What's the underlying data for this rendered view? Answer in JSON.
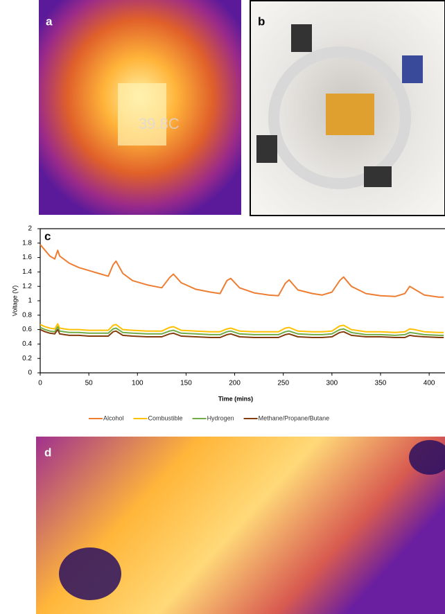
{
  "panel_labels": [
    "a",
    "b",
    "c",
    "d"
  ],
  "thermal_reading": "39.8C",
  "chart_data": {
    "type": "line",
    "xlabel": "Time (mins)",
    "ylabel": "Voltage (V)",
    "xlim": [
      0,
      417
    ],
    "xticks": [
      0,
      50,
      100,
      150,
      200,
      250,
      300,
      350,
      400
    ],
    "ylim": [
      0,
      2
    ],
    "yticks": [
      0,
      0.2,
      0.4,
      0.6,
      0.8,
      1,
      1.2,
      1.4,
      1.6,
      1.8,
      2
    ],
    "legend": "bottom",
    "x": [
      0,
      5,
      10,
      15,
      18,
      20,
      25,
      30,
      40,
      50,
      60,
      70,
      75,
      78,
      85,
      95,
      110,
      125,
      133,
      137,
      145,
      160,
      175,
      185,
      192,
      196,
      205,
      220,
      235,
      245,
      252,
      256,
      265,
      280,
      290,
      300,
      308,
      312,
      320,
      335,
      350,
      365,
      375,
      380,
      385,
      395,
      410,
      415
    ],
    "series": [
      {
        "name": "Alcohol",
        "color": "#ed7d31",
        "values": [
          1.78,
          1.7,
          1.62,
          1.58,
          1.7,
          1.62,
          1.57,
          1.52,
          1.46,
          1.42,
          1.38,
          1.34,
          1.5,
          1.55,
          1.38,
          1.28,
          1.22,
          1.18,
          1.32,
          1.37,
          1.25,
          1.16,
          1.12,
          1.1,
          1.28,
          1.31,
          1.18,
          1.11,
          1.08,
          1.07,
          1.24,
          1.29,
          1.15,
          1.1,
          1.08,
          1.12,
          1.28,
          1.33,
          1.2,
          1.1,
          1.07,
          1.06,
          1.1,
          1.2,
          1.16,
          1.08,
          1.05,
          1.05
        ]
      },
      {
        "name": "Combustible",
        "color": "#ffc000",
        "values": [
          0.67,
          0.64,
          0.62,
          0.61,
          0.68,
          0.62,
          0.61,
          0.6,
          0.6,
          0.59,
          0.59,
          0.59,
          0.66,
          0.67,
          0.6,
          0.59,
          0.58,
          0.58,
          0.63,
          0.64,
          0.59,
          0.58,
          0.57,
          0.57,
          0.61,
          0.62,
          0.58,
          0.57,
          0.57,
          0.57,
          0.62,
          0.63,
          0.58,
          0.57,
          0.57,
          0.58,
          0.65,
          0.66,
          0.6,
          0.57,
          0.57,
          0.56,
          0.57,
          0.61,
          0.6,
          0.57,
          0.56,
          0.56
        ]
      },
      {
        "name": "Hydrogen",
        "color": "#70ad47",
        "values": [
          0.63,
          0.6,
          0.58,
          0.57,
          0.64,
          0.58,
          0.57,
          0.56,
          0.56,
          0.55,
          0.55,
          0.55,
          0.61,
          0.62,
          0.56,
          0.55,
          0.54,
          0.54,
          0.58,
          0.59,
          0.55,
          0.54,
          0.53,
          0.53,
          0.57,
          0.58,
          0.54,
          0.53,
          0.53,
          0.53,
          0.57,
          0.58,
          0.54,
          0.53,
          0.53,
          0.54,
          0.6,
          0.61,
          0.56,
          0.53,
          0.53,
          0.52,
          0.53,
          0.56,
          0.55,
          0.53,
          0.52,
          0.52
        ]
      },
      {
        "name": "Methane/Propane/Butane",
        "color": "#843c0c",
        "values": [
          0.6,
          0.57,
          0.55,
          0.54,
          0.6,
          0.54,
          0.53,
          0.52,
          0.52,
          0.51,
          0.51,
          0.51,
          0.57,
          0.58,
          0.52,
          0.51,
          0.5,
          0.5,
          0.54,
          0.55,
          0.51,
          0.5,
          0.49,
          0.49,
          0.53,
          0.54,
          0.5,
          0.49,
          0.49,
          0.49,
          0.53,
          0.54,
          0.5,
          0.49,
          0.49,
          0.5,
          0.56,
          0.57,
          0.52,
          0.5,
          0.5,
          0.49,
          0.49,
          0.52,
          0.51,
          0.5,
          0.49,
          0.49
        ]
      }
    ]
  }
}
